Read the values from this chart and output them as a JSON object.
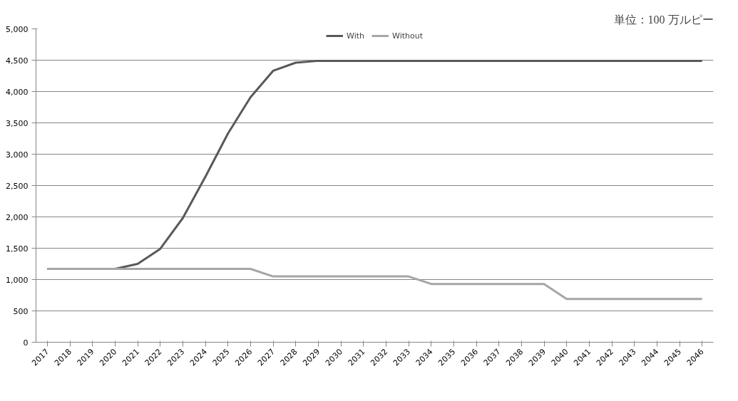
{
  "chart_data": {
    "type": "line",
    "categories": [
      "2017",
      "2018",
      "2019",
      "2020",
      "2021",
      "2022",
      "2023",
      "2024",
      "2025",
      "2026",
      "2027",
      "2028",
      "2029",
      "2030",
      "2031",
      "2032",
      "2033",
      "2034",
      "2035",
      "2036",
      "2037",
      "2038",
      "2039",
      "2040",
      "2041",
      "2042",
      "2043",
      "2044",
      "2045",
      "2046"
    ],
    "series": [
      {
        "name": "With",
        "color": "#595959",
        "values": [
          1170,
          1170,
          1170,
          1170,
          1250,
          1490,
          1980,
          2640,
          3330,
          3910,
          4330,
          4460,
          4490,
          4490,
          4490,
          4490,
          4490,
          4490,
          4490,
          4490,
          4490,
          4490,
          4490,
          4490,
          4490,
          4490,
          4490,
          4490,
          4490,
          4490
        ]
      },
      {
        "name": "Without",
        "color": "#a6a6a6",
        "values": [
          1170,
          1170,
          1170,
          1170,
          1170,
          1170,
          1170,
          1170,
          1170,
          1170,
          1050,
          1050,
          1050,
          1050,
          1050,
          1050,
          1050,
          930,
          930,
          930,
          930,
          930,
          930,
          690,
          690,
          690,
          690,
          690,
          690,
          690
        ]
      }
    ],
    "ylim": [
      0,
      5000
    ],
    "yticks": [
      {
        "value": 0,
        "label": "0"
      },
      {
        "value": 500,
        "label": "500"
      },
      {
        "value": 1000,
        "label": "1,000"
      },
      {
        "value": 1500,
        "label": "1,500"
      },
      {
        "value": 2000,
        "label": "2,000"
      },
      {
        "value": 2500,
        "label": "2,500"
      },
      {
        "value": 3000,
        "label": "3,000"
      },
      {
        "value": 3500,
        "label": "3,500"
      },
      {
        "value": 4000,
        "label": "4,000"
      },
      {
        "value": 4500,
        "label": "4,500"
      },
      {
        "value": 5000,
        "label": "5,000"
      }
    ],
    "grid": "y",
    "legend": "top",
    "marker": "none",
    "line_style": "solid",
    "annotations": [
      "単位：100 万ルピー"
    ]
  }
}
